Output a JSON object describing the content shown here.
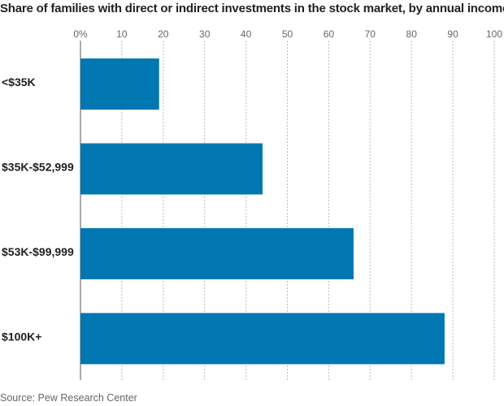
{
  "title": "Share of families with direct or indirect investments in the stock market, by annual income:",
  "source": "Source: Pew Research Center",
  "colors": {
    "bar": "#0077b0",
    "text": "#222222",
    "muted": "#666666",
    "grid": "#bbbbbb"
  },
  "chart_data": {
    "type": "bar",
    "orientation": "horizontal",
    "title": "Share of families with direct or indirect investments in the stock market, by annual income:",
    "categories": [
      "<$35K",
      "$35K-$52,999",
      "$53K-$99,999",
      "$100K+"
    ],
    "values": [
      19,
      44,
      66,
      88
    ],
    "xlim": [
      0,
      100
    ],
    "x_ticks": [
      0,
      10,
      20,
      30,
      40,
      50,
      60,
      70,
      80,
      90,
      100
    ],
    "x_tick_labels": [
      "0%",
      "10",
      "20",
      "30",
      "40",
      "50",
      "60",
      "70",
      "80",
      "90",
      "100"
    ],
    "xlabel": "",
    "ylabel": "",
    "grid": true,
    "legend": "none"
  }
}
